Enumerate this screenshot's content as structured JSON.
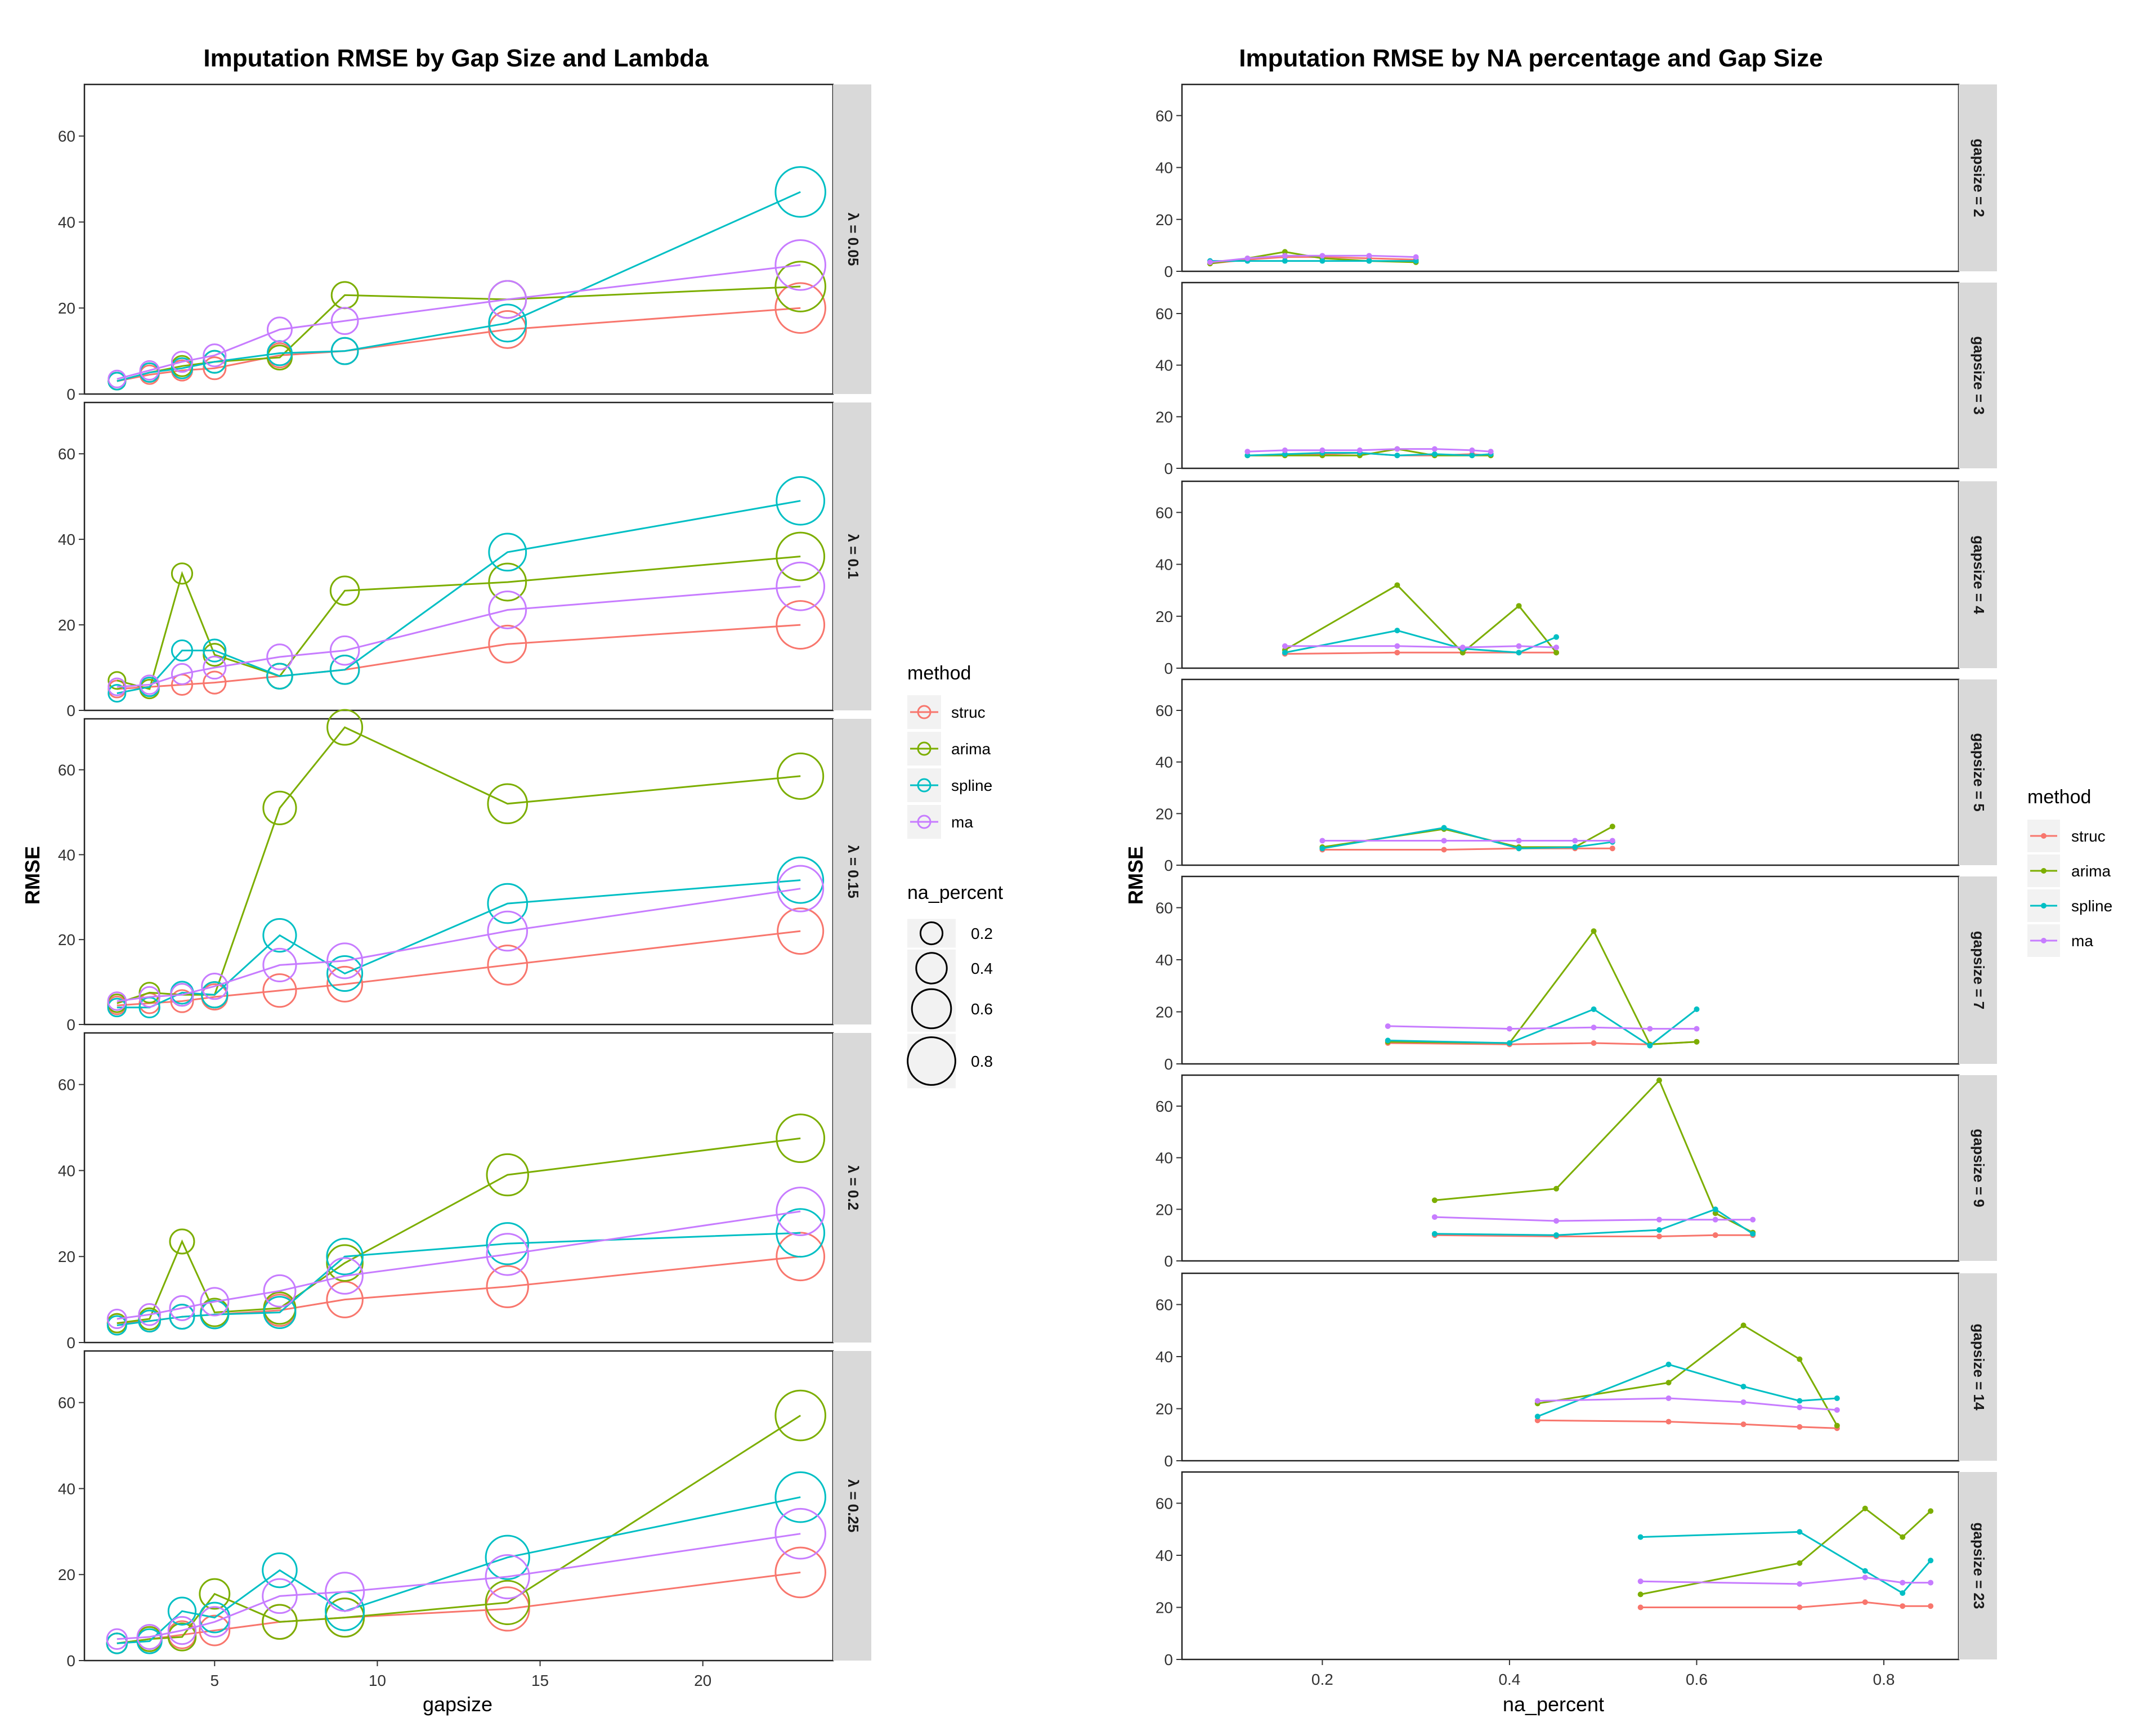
{
  "chart_data": [
    {
      "type": "line",
      "title": "Imputation RMSE by Gap Size and Lambda",
      "xlabel": "gapsize",
      "ylabel": "RMSE",
      "xlim": [
        1.0,
        24.0
      ],
      "ylim": [
        0,
        72
      ],
      "xticks": [
        5,
        10,
        15,
        20
      ],
      "yticks": [
        0,
        20,
        40,
        60
      ],
      "size_variable": "na_percent",
      "facet_labels": [
        "λ = 0.05",
        "λ = 0.1",
        "λ = 0.15",
        "λ = 0.2",
        "λ = 0.25"
      ],
      "legend_color": {
        "title": "method",
        "items": [
          {
            "name": "struc",
            "color": "#F8766D"
          },
          {
            "name": "arima",
            "color": "#7CAE00"
          },
          {
            "name": "spline",
            "color": "#00BFC4"
          },
          {
            "name": "ma",
            "color": "#C77CFF"
          }
        ]
      },
      "legend_size": {
        "title": "na_percent",
        "items": [
          {
            "label": "0.2",
            "value": 0.2
          },
          {
            "label": "0.4",
            "value": 0.4
          },
          {
            "label": "0.6",
            "value": 0.6
          },
          {
            "label": "0.8",
            "value": 0.8
          }
        ]
      },
      "x": [
        2,
        3,
        4,
        5,
        7,
        9,
        14,
        23
      ],
      "na_percent": [
        [
          0.08,
          0.12,
          0.16,
          0.2,
          0.25,
          0.3,
          0.55,
          0.85
        ],
        [
          0.08,
          0.12,
          0.16,
          0.2,
          0.27,
          0.35,
          0.55,
          0.8
        ],
        [
          0.1,
          0.15,
          0.2,
          0.28,
          0.45,
          0.5,
          0.6,
          0.75
        ],
        [
          0.12,
          0.18,
          0.25,
          0.33,
          0.42,
          0.52,
          0.65,
          0.8
        ],
        [
          0.15,
          0.25,
          0.32,
          0.38,
          0.48,
          0.58,
          0.7,
          0.85
        ]
      ],
      "facets": [
        {
          "series": [
            {
              "name": "struc",
              "values": [
                3,
                4.5,
                5.5,
                6,
                9,
                10,
                15,
                20
              ]
            },
            {
              "name": "arima",
              "values": [
                3,
                5,
                6.5,
                7.5,
                8.5,
                23,
                22,
                25
              ]
            },
            {
              "name": "spline",
              "values": [
                3,
                5,
                6,
                7.5,
                9.5,
                10,
                16.5,
                47
              ]
            },
            {
              "name": "ma",
              "values": [
                3.5,
                5.5,
                7.5,
                9,
                15,
                17,
                22,
                30
              ]
            }
          ]
        },
        {
          "series": [
            {
              "name": "struc",
              "values": [
                5,
                5.5,
                6,
                6.5,
                8,
                9.5,
                15.5,
                20
              ]
            },
            {
              "name": "arima",
              "values": [
                7,
                5,
                32,
                13,
                8,
                28,
                30,
                36
              ]
            },
            {
              "name": "spline",
              "values": [
                4,
                5.5,
                14,
                14,
                8,
                9.5,
                37,
                49
              ]
            },
            {
              "name": "ma",
              "values": [
                5.5,
                6,
                8.5,
                10,
                12.5,
                14,
                23.5,
                29
              ]
            }
          ]
        },
        {
          "series": [
            {
              "name": "struc",
              "values": [
                4.5,
                5,
                5.5,
                6.5,
                8,
                9.5,
                14,
                22
              ]
            },
            {
              "name": "arima",
              "values": [
                5,
                7.5,
                7,
                7,
                51,
                70,
                52,
                58.5
              ]
            },
            {
              "name": "spline",
              "values": [
                4,
                4,
                7.5,
                7,
                21,
                12,
                28.5,
                34
              ]
            },
            {
              "name": "ma",
              "values": [
                5.5,
                6.5,
                7,
                9,
                14,
                15,
                22,
                32
              ]
            }
          ]
        },
        {
          "series": [
            {
              "name": "struc",
              "values": [
                4.5,
                5,
                6,
                6.5,
                7.5,
                10,
                13,
                20
              ]
            },
            {
              "name": "arima",
              "values": [
                4.5,
                5.5,
                23.5,
                7,
                8,
                18.5,
                39,
                47.5
              ]
            },
            {
              "name": "spline",
              "values": [
                4,
                5,
                6,
                6.5,
                7,
                20,
                23,
                25.5
              ]
            },
            {
              "name": "ma",
              "values": [
                5.5,
                6.5,
                8,
                9.5,
                12,
                15.5,
                20.5,
                30.5
              ]
            }
          ]
        },
        {
          "series": [
            {
              "name": "struc",
              "values": [
                4,
                5,
                6,
                7,
                9,
                10,
                12,
                20.5
              ]
            },
            {
              "name": "arima",
              "values": [
                4,
                5,
                5.5,
                15.5,
                9,
                10,
                13.5,
                57
              ]
            },
            {
              "name": "spline",
              "values": [
                4,
                4.5,
                11.5,
                10,
                21,
                11.5,
                24,
                38
              ]
            },
            {
              "name": "ma",
              "values": [
                5,
                5.5,
                7,
                9,
                15,
                16,
                19.5,
                29.5
              ]
            }
          ]
        }
      ]
    },
    {
      "type": "line",
      "title": "Imputation RMSE by NA percentage and Gap Size",
      "xlabel": "na_percent",
      "ylabel": "RMSE",
      "xlim": [
        0.05,
        0.88
      ],
      "ylim": [
        0,
        72
      ],
      "xticks": [
        0.2,
        0.4,
        0.6,
        0.8
      ],
      "yticks": [
        0,
        20,
        40,
        60
      ],
      "facet_labels": [
        "gapsize = 2",
        "gapsize = 3",
        "gapsize = 4",
        "gapsize = 5",
        "gapsize = 7",
        "gapsize = 9",
        "gapsize = 14",
        "gapsize = 23"
      ],
      "legend_color": {
        "title": "method",
        "items": [
          {
            "name": "struc",
            "color": "#F8766D"
          },
          {
            "name": "arima",
            "color": "#7CAE00"
          },
          {
            "name": "spline",
            "color": "#00BFC4"
          },
          {
            "name": "ma",
            "color": "#C77CFF"
          }
        ]
      },
      "facets": [
        {
          "x": [
            0.08,
            0.12,
            0.16,
            0.2,
            0.25,
            0.3
          ],
          "series": [
            {
              "name": "struc",
              "values": [
                3,
                4.5,
                5.5,
                5.5,
                5,
                4.5
              ]
            },
            {
              "name": "arima",
              "values": [
                3,
                5,
                7.5,
                5,
                4,
                3.5
              ]
            },
            {
              "name": "spline",
              "values": [
                4,
                4,
                4,
                4,
                4,
                4
              ]
            },
            {
              "name": "ma",
              "values": [
                3.5,
                5,
                6,
                6,
                6,
                5.5
              ]
            }
          ]
        },
        {
          "x": [
            0.12,
            0.16,
            0.2,
            0.24,
            0.28,
            0.32,
            0.36,
            0.38
          ],
          "series": [
            {
              "name": "struc",
              "values": [
                5,
                5,
                5.5,
                6,
                5,
                5,
                5.5,
                5
              ]
            },
            {
              "name": "arima",
              "values": [
                5,
                5,
                5,
                5,
                7.5,
                5,
                5,
                5
              ]
            },
            {
              "name": "spline",
              "values": [
                5,
                5.5,
                6,
                6,
                5,
                5.5,
                5,
                5.5
              ]
            },
            {
              "name": "ma",
              "values": [
                6.5,
                7,
                7,
                7,
                7.5,
                7.5,
                7,
                6.5
              ]
            }
          ]
        },
        {
          "x": [
            0.16,
            0.28,
            0.35,
            0.41,
            0.45
          ],
          "series": [
            {
              "name": "struc",
              "values": [
                5.5,
                6,
                6,
                6,
                6
              ]
            },
            {
              "name": "arima",
              "values": [
                7,
                32,
                6,
                24,
                6
              ]
            },
            {
              "name": "spline",
              "values": [
                6,
                14.5,
                7.5,
                6,
                12
              ]
            },
            {
              "name": "ma",
              "values": [
                8.5,
                8.5,
                8,
                8.5,
                8
              ]
            }
          ]
        },
        {
          "x": [
            0.2,
            0.33,
            0.41,
            0.47,
            0.51
          ],
          "series": [
            {
              "name": "struc",
              "values": [
                6,
                6,
                6.5,
                6.5,
                6.5
              ]
            },
            {
              "name": "arima",
              "values": [
                7,
                14,
                7,
                7,
                15
              ]
            },
            {
              "name": "spline",
              "values": [
                6.5,
                14.5,
                6.5,
                7,
                9
              ]
            },
            {
              "name": "ma",
              "values": [
                9.5,
                9.5,
                9.5,
                9.5,
                9.5
              ]
            }
          ]
        },
        {
          "x": [
            0.27,
            0.4,
            0.49,
            0.55,
            0.6
          ],
          "series": [
            {
              "name": "struc",
              "values": [
                8,
                7.5,
                8,
                7.5,
                8.5
              ]
            },
            {
              "name": "arima",
              "values": [
                8.5,
                8,
                51,
                7.5,
                8.5
              ]
            },
            {
              "name": "spline",
              "values": [
                9,
                8,
                21,
                7,
                21
              ]
            },
            {
              "name": "ma",
              "values": [
                14.5,
                13.5,
                14,
                13.5,
                13.5
              ]
            }
          ]
        },
        {
          "x": [
            0.32,
            0.45,
            0.56,
            0.62,
            0.66
          ],
          "series": [
            {
              "name": "struc",
              "values": [
                10,
                9.5,
                9.5,
                10,
                10
              ]
            },
            {
              "name": "arima",
              "values": [
                23.5,
                28,
                70,
                18.5,
                11
              ]
            },
            {
              "name": "spline",
              "values": [
                10.5,
                10,
                12,
                20,
                10.5
              ]
            },
            {
              "name": "ma",
              "values": [
                17,
                15.5,
                16,
                16,
                16
              ]
            }
          ]
        },
        {
          "x": [
            0.43,
            0.57,
            0.65,
            0.71,
            0.75
          ],
          "series": [
            {
              "name": "struc",
              "values": [
                15.5,
                15,
                14,
                13,
                12.5
              ]
            },
            {
              "name": "arima",
              "values": [
                22,
                30,
                52,
                39,
                13.5
              ]
            },
            {
              "name": "spline",
              "values": [
                17,
                37,
                28.5,
                23,
                24
              ]
            },
            {
              "name": "ma",
              "values": [
                23,
                24,
                22.5,
                20.5,
                19.5
              ]
            }
          ]
        },
        {
          "x": [
            0.54,
            0.71,
            0.78,
            0.82,
            0.85
          ],
          "series": [
            {
              "name": "struc",
              "values": [
                20,
                20,
                22,
                20.5,
                20.5
              ]
            },
            {
              "name": "arima",
              "values": [
                25,
                37,
                58,
                47,
                57
              ]
            },
            {
              "name": "spline",
              "values": [
                47,
                49,
                34,
                25.5,
                38
              ]
            },
            {
              "name": "ma",
              "values": [
                30,
                29,
                31.5,
                29.5,
                29.5
              ]
            }
          ]
        }
      ]
    }
  ]
}
